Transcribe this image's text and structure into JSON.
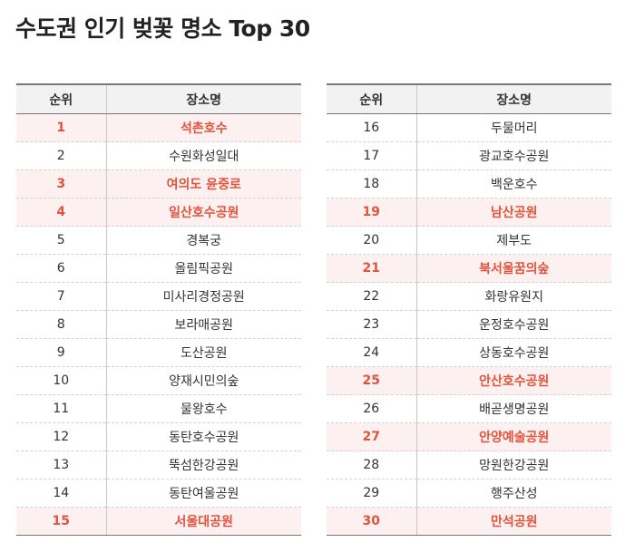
{
  "title": "수도권 인기 벚꽃 명소 Top 30",
  "columns": {
    "rank": "순위",
    "place": "장소명"
  },
  "highlight_color": "#e2533c",
  "highlight_bg": "#fdf0f0",
  "left_rows": [
    {
      "rank": "1",
      "place": "석촌호수",
      "highlight": true
    },
    {
      "rank": "2",
      "place": "수원화성일대",
      "highlight": false
    },
    {
      "rank": "3",
      "place": "여의도 윤중로",
      "highlight": true
    },
    {
      "rank": "4",
      "place": "일산호수공원",
      "highlight": true
    },
    {
      "rank": "5",
      "place": "경복궁",
      "highlight": false
    },
    {
      "rank": "6",
      "place": "올림픽공원",
      "highlight": false
    },
    {
      "rank": "7",
      "place": "미사리경정공원",
      "highlight": false
    },
    {
      "rank": "8",
      "place": "보라매공원",
      "highlight": false
    },
    {
      "rank": "9",
      "place": "도산공원",
      "highlight": false
    },
    {
      "rank": "10",
      "place": "양재시민의숲",
      "highlight": false
    },
    {
      "rank": "11",
      "place": "물왕호수",
      "highlight": false
    },
    {
      "rank": "12",
      "place": "동탄호수공원",
      "highlight": false
    },
    {
      "rank": "13",
      "place": "뚝섬한강공원",
      "highlight": false
    },
    {
      "rank": "14",
      "place": "동탄여울공원",
      "highlight": false
    },
    {
      "rank": "15",
      "place": "서울대공원",
      "highlight": true
    }
  ],
  "right_rows": [
    {
      "rank": "16",
      "place": "두물머리",
      "highlight": false
    },
    {
      "rank": "17",
      "place": "광교호수공원",
      "highlight": false
    },
    {
      "rank": "18",
      "place": "백운호수",
      "highlight": false
    },
    {
      "rank": "19",
      "place": "남산공원",
      "highlight": true
    },
    {
      "rank": "20",
      "place": "제부도",
      "highlight": false
    },
    {
      "rank": "21",
      "place": "북서울꿈의숲",
      "highlight": true
    },
    {
      "rank": "22",
      "place": "화랑유원지",
      "highlight": false
    },
    {
      "rank": "23",
      "place": "운정호수공원",
      "highlight": false
    },
    {
      "rank": "24",
      "place": "상동호수공원",
      "highlight": false
    },
    {
      "rank": "25",
      "place": "안산호수공원",
      "highlight": true
    },
    {
      "rank": "26",
      "place": "배곧생명공원",
      "highlight": false
    },
    {
      "rank": "27",
      "place": "안양예술공원",
      "highlight": true
    },
    {
      "rank": "28",
      "place": "망원한강공원",
      "highlight": false
    },
    {
      "rank": "29",
      "place": "행주산성",
      "highlight": false
    },
    {
      "rank": "30",
      "place": "만석공원",
      "highlight": true
    }
  ]
}
